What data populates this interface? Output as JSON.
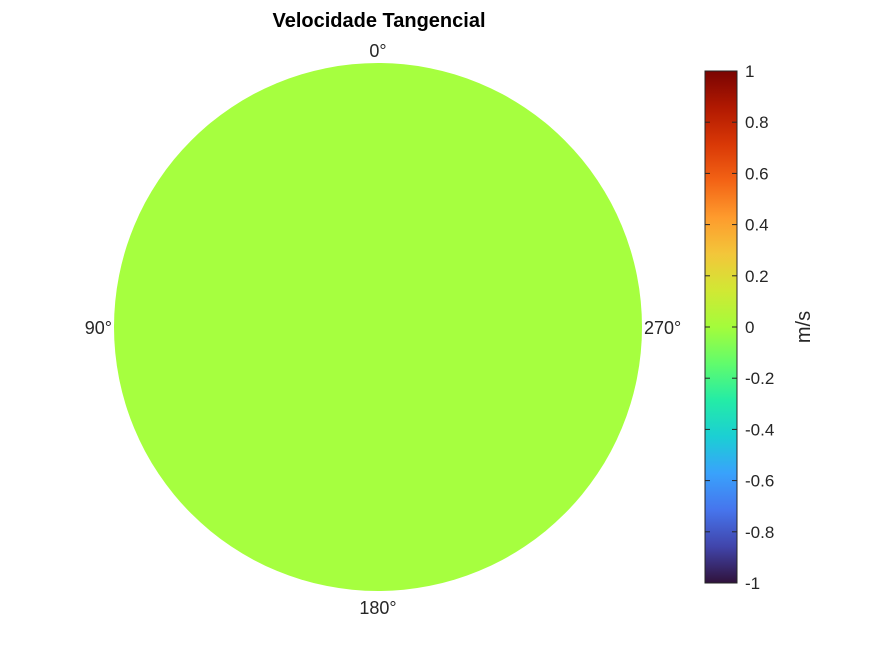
{
  "chart_data": {
    "type": "heatmap",
    "subtype": "polar-disk",
    "title": "Velocidade Tangencial",
    "angle_labels": [
      "0°",
      "90°",
      "180°",
      "270°"
    ],
    "value": 0,
    "colorbar": {
      "label": "m/s",
      "min": -1,
      "max": 1,
      "ticks": [
        "1",
        "0.8",
        "0.6",
        "0.4",
        "0.2",
        "0",
        "-0.2",
        "-0.4",
        "-0.6",
        "-0.8",
        "-1"
      ],
      "tick_values": [
        1,
        0.8,
        0.6,
        0.4,
        0.2,
        0,
        -0.2,
        -0.4,
        -0.6,
        -0.8,
        -1
      ],
      "colormap": "turbo",
      "colormap_stops": [
        "#30123b",
        "#4145ab",
        "#4675ed",
        "#39a2fc",
        "#1bcfd4",
        "#24eca6",
        "#61fc6c",
        "#a4fc3b",
        "#d1e834",
        "#f3c63a",
        "#fe9b2d",
        "#f36315",
        "#d93806",
        "#b11901",
        "#7a0402"
      ]
    },
    "disk_color": "#a6ff3f",
    "grid": false,
    "legend": "none"
  }
}
